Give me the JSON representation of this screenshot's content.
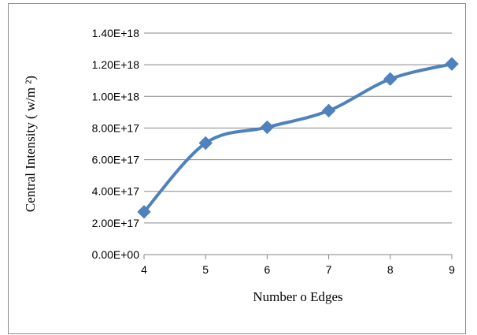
{
  "chart_data": {
    "type": "line",
    "title": "",
    "xlabel": "Number o Edges",
    "ylabel": "Central Intensity ( w/m ²)",
    "x": [
      4,
      5,
      6,
      7,
      8,
      9
    ],
    "x_tick_labels": [
      "4",
      "5",
      "6",
      "7",
      "8",
      "9"
    ],
    "ylim": [
      0,
      1.4e+18
    ],
    "y_ticks": [
      0,
      2e+17,
      4e+17,
      6e+17,
      8e+17,
      1e+18,
      1.2e+18,
      1.4e+18
    ],
    "y_tick_labels": [
      "0.00E+00",
      "2.00E+17",
      "4.00E+17",
      "6.00E+17",
      "8.00E+17",
      "1.00E+18",
      "1.20E+18",
      "1.40E+18"
    ],
    "series": [
      {
        "values": [
          2.7e+17,
          7.05e+17,
          8.05e+17,
          9.1e+17,
          1.11e+18,
          1.205e+18
        ],
        "marker": "diamond"
      }
    ],
    "gridlines": "horizontal",
    "legend": "none",
    "colors": {
      "series": "#4f81bd",
      "grid": "#868686",
      "axis": "#868686",
      "frame": "#8c8c8c"
    }
  }
}
